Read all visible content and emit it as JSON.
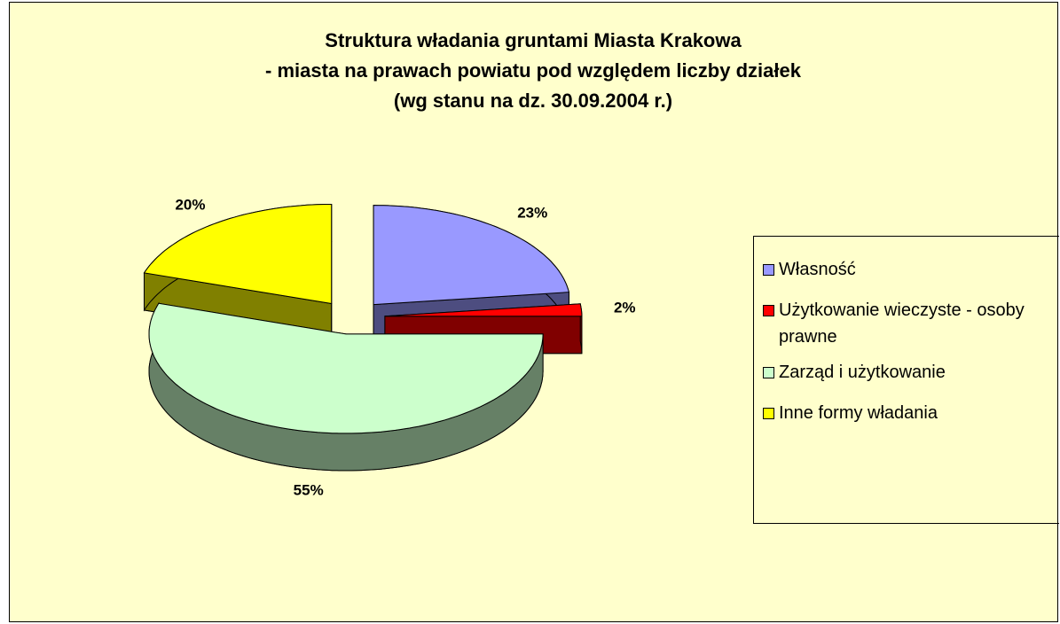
{
  "chart_data": {
    "type": "pie3d",
    "title": [
      "Struktura władania gruntami Miasta Krakowa",
      "- miasta na prawach powiatu pod względem liczby działek",
      "(wg stanu na dz. 30.09.2004 r.)"
    ],
    "categories": [
      "Własność",
      "Użytkowanie wieczyste - osoby prawne",
      "Zarząd i użytkowanie",
      "Inne formy władania"
    ],
    "values": [
      23,
      2,
      55,
      20
    ],
    "value_labels": [
      "23%",
      "2%",
      "55%",
      "20%"
    ],
    "colors": [
      "#9999ff",
      "#ff0000",
      "#ccffcc",
      "#ffff00"
    ],
    "side_colors": [
      "#4d4d80",
      "#800000",
      "#668066",
      "#808000"
    ],
    "legend": "right"
  }
}
